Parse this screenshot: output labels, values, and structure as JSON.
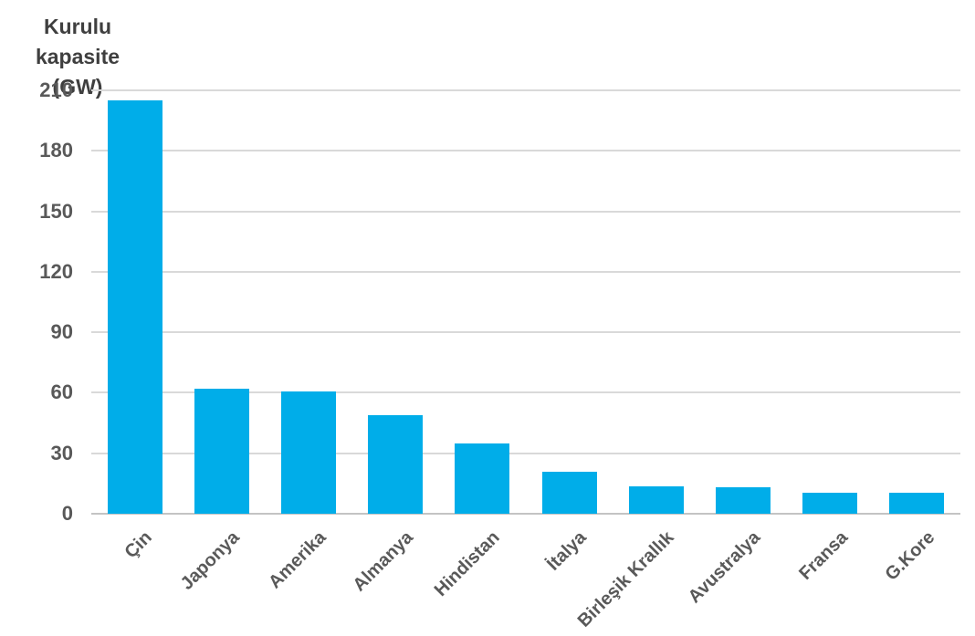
{
  "chart_data": {
    "type": "bar",
    "title": "Kurulu kapasite (GW)",
    "axis_title_lines": [
      "Kurulu kapasite",
      "(GW)"
    ],
    "categories": [
      "Çin",
      "Japonya",
      "Amerika",
      "Almanya",
      "Hindistan",
      "İtalya",
      "Birleşik Krallık",
      "Avustralya",
      "Fransa",
      "G.Kore"
    ],
    "values": [
      205,
      61.8,
      60.5,
      48.9,
      34.8,
      20.9,
      13.4,
      13.3,
      10.6,
      10.4
    ],
    "xlabel": "",
    "ylabel": "Kurulu kapasite (GW)",
    "ylim": [
      0,
      210
    ],
    "yticks": [
      0,
      30,
      60,
      90,
      120,
      150,
      180,
      210
    ],
    "grid": true,
    "legend": false,
    "colors": {
      "bar": "#00ade9",
      "gridline": "#d9d9d9",
      "axis_line": "#c4c4c4",
      "tick_label": "#595959",
      "title": "#3f3f3f",
      "background": "#ffffff"
    }
  }
}
